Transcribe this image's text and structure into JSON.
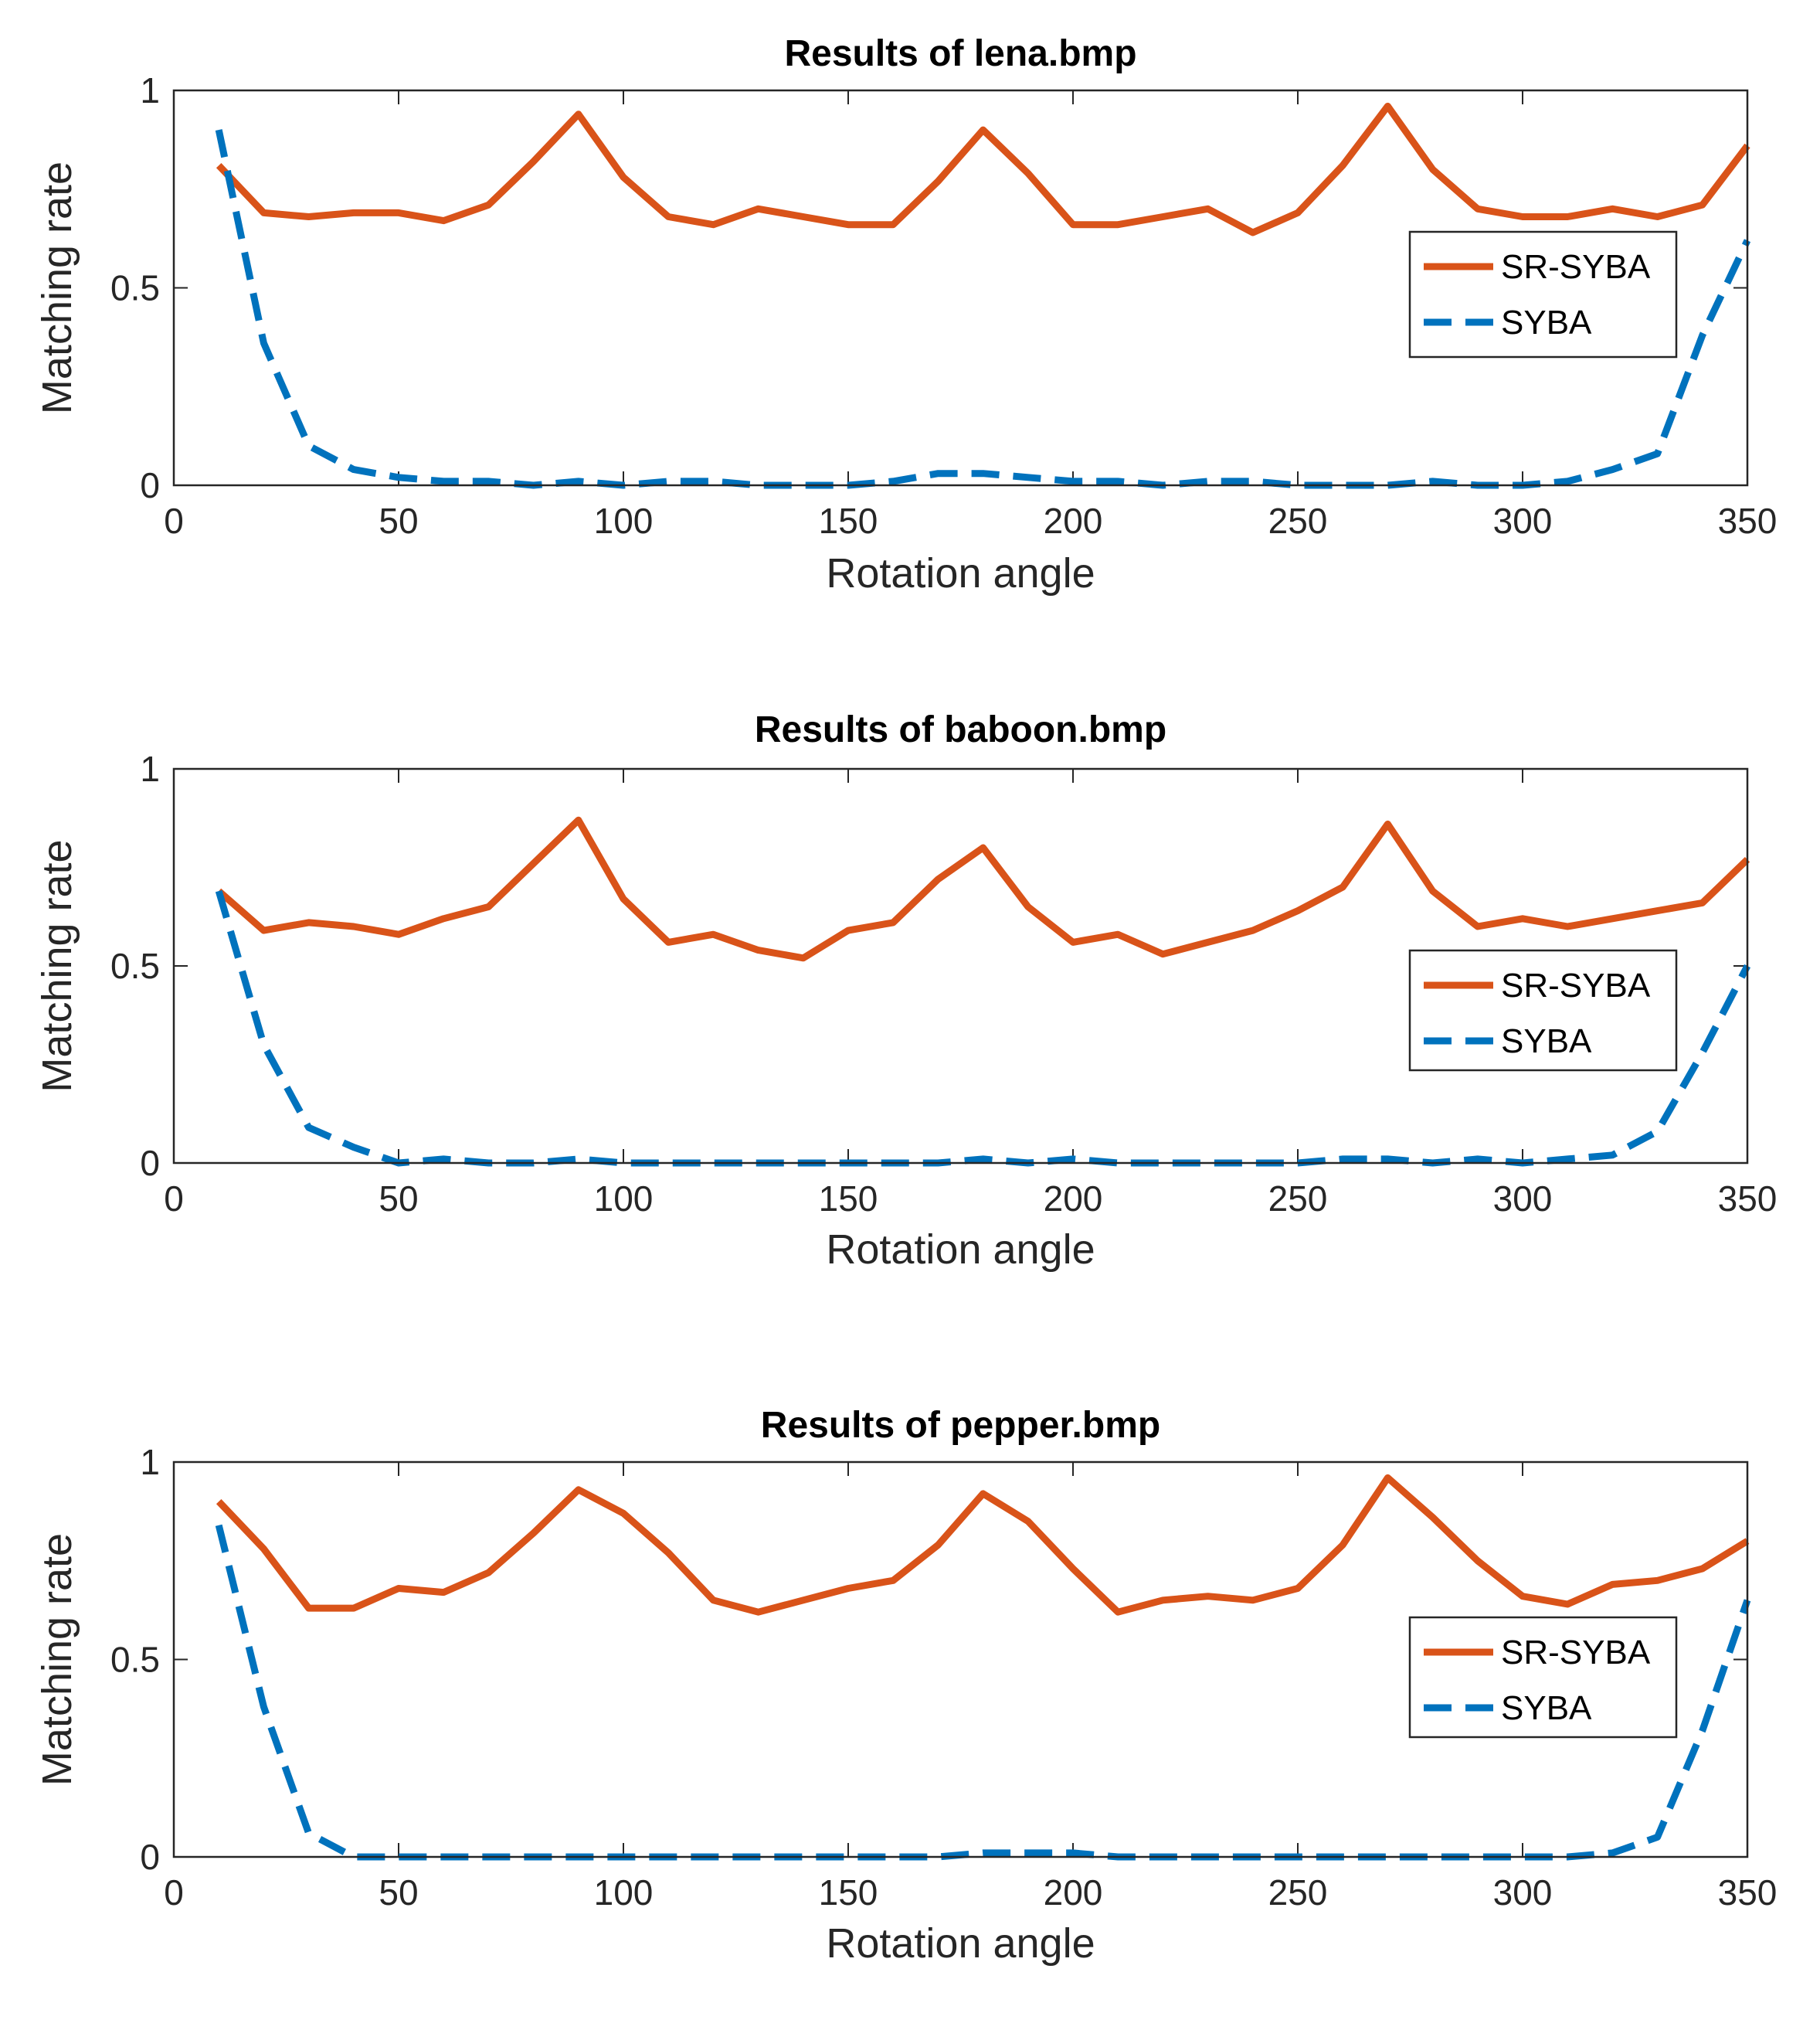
{
  "chart_data": [
    {
      "type": "line",
      "title": "Results of lena.bmp",
      "xlabel": "Rotation angle",
      "ylabel": "Matching rate",
      "xlim": [
        0,
        350
      ],
      "ylim": [
        0,
        1
      ],
      "xticks": [
        "0",
        "50",
        "100",
        "150",
        "200",
        "250",
        "300",
        "350"
      ],
      "xtick_values": [
        0,
        50,
        100,
        150,
        200,
        250,
        300,
        350
      ],
      "yticks": [
        "0",
        "0.5",
        "1"
      ],
      "ytick_values": [
        0,
        0.5,
        1
      ],
      "grid": false,
      "legend_position": "right",
      "x": [
        10,
        20,
        30,
        40,
        50,
        60,
        70,
        80,
        90,
        100,
        110,
        120,
        130,
        140,
        150,
        160,
        170,
        180,
        190,
        200,
        210,
        220,
        230,
        240,
        250,
        260,
        270,
        280,
        290,
        300,
        310,
        320,
        330,
        340,
        350
      ],
      "series": [
        {
          "name": "SR-SYBA",
          "color": "#D95319",
          "style": "solid",
          "values": [
            0.81,
            0.69,
            0.68,
            0.69,
            0.69,
            0.67,
            0.71,
            0.82,
            0.94,
            0.78,
            0.68,
            0.66,
            0.7,
            0.68,
            0.66,
            0.66,
            0.77,
            0.9,
            0.79,
            0.66,
            0.66,
            0.68,
            0.7,
            0.64,
            0.69,
            0.81,
            0.96,
            0.8,
            0.7,
            0.68,
            0.68,
            0.7,
            0.68,
            0.71,
            0.86
          ]
        },
        {
          "name": "SYBA",
          "color": "#0072BD",
          "style": "dashed",
          "values": [
            0.9,
            0.36,
            0.1,
            0.04,
            0.02,
            0.01,
            0.01,
            0.0,
            0.01,
            0.0,
            0.01,
            0.01,
            0.0,
            0.0,
            0.0,
            0.01,
            0.03,
            0.03,
            0.02,
            0.01,
            0.01,
            0.0,
            0.01,
            0.01,
            0.0,
            0.0,
            0.0,
            0.01,
            0.0,
            0.0,
            0.01,
            0.04,
            0.08,
            0.38,
            0.62
          ]
        }
      ]
    },
    {
      "type": "line",
      "title": "Results of baboon.bmp",
      "xlabel": "Rotation angle",
      "ylabel": "Matching rate",
      "xlim": [
        0,
        350
      ],
      "ylim": [
        0,
        1
      ],
      "xticks": [
        "0",
        "50",
        "100",
        "150",
        "200",
        "250",
        "300",
        "350"
      ],
      "xtick_values": [
        0,
        50,
        100,
        150,
        200,
        250,
        300,
        350
      ],
      "yticks": [
        "0",
        "0.5",
        "1"
      ],
      "ytick_values": [
        0,
        0.5,
        1
      ],
      "grid": false,
      "legend_position": "right",
      "x": [
        10,
        20,
        30,
        40,
        50,
        60,
        70,
        80,
        90,
        100,
        110,
        120,
        130,
        140,
        150,
        160,
        170,
        180,
        190,
        200,
        210,
        220,
        230,
        240,
        250,
        260,
        270,
        280,
        290,
        300,
        310,
        320,
        330,
        340,
        350
      ],
      "series": [
        {
          "name": "SR-SYBA",
          "color": "#D95319",
          "style": "solid",
          "values": [
            0.69,
            0.59,
            0.61,
            0.6,
            0.58,
            0.62,
            0.65,
            0.76,
            0.87,
            0.67,
            0.56,
            0.58,
            0.54,
            0.52,
            0.59,
            0.61,
            0.72,
            0.8,
            0.65,
            0.56,
            0.58,
            0.53,
            0.56,
            0.59,
            0.64,
            0.7,
            0.86,
            0.69,
            0.6,
            0.62,
            0.6,
            0.62,
            0.64,
            0.66,
            0.77
          ]
        },
        {
          "name": "SYBA",
          "color": "#0072BD",
          "style": "dashed",
          "values": [
            0.69,
            0.3,
            0.09,
            0.04,
            0.0,
            0.01,
            0.0,
            0.0,
            0.01,
            0.0,
            0.0,
            0.0,
            0.0,
            0.0,
            0.0,
            0.0,
            0.0,
            0.01,
            0.0,
            0.01,
            0.0,
            0.0,
            0.0,
            0.0,
            0.0,
            0.01,
            0.01,
            0.0,
            0.01,
            0.0,
            0.01,
            0.02,
            0.08,
            0.28,
            0.5
          ]
        }
      ]
    },
    {
      "type": "line",
      "title": "Results of pepper.bmp",
      "xlabel": "Rotation angle",
      "ylabel": "Matching rate",
      "xlim": [
        0,
        350
      ],
      "ylim": [
        0,
        1
      ],
      "xticks": [
        "0",
        "50",
        "100",
        "150",
        "200",
        "250",
        "300",
        "350"
      ],
      "xtick_values": [
        0,
        50,
        100,
        150,
        200,
        250,
        300,
        350
      ],
      "yticks": [
        "0",
        "0.5",
        "1"
      ],
      "ytick_values": [
        0,
        0.5,
        1
      ],
      "grid": false,
      "legend_position": "right",
      "x": [
        10,
        20,
        30,
        40,
        50,
        60,
        70,
        80,
        90,
        100,
        110,
        120,
        130,
        140,
        150,
        160,
        170,
        180,
        190,
        200,
        210,
        220,
        230,
        240,
        250,
        260,
        270,
        280,
        290,
        300,
        310,
        320,
        330,
        340,
        350
      ],
      "series": [
        {
          "name": "SR-SYBA",
          "color": "#D95319",
          "style": "solid",
          "values": [
            0.9,
            0.78,
            0.63,
            0.63,
            0.68,
            0.67,
            0.72,
            0.82,
            0.93,
            0.87,
            0.77,
            0.65,
            0.62,
            0.65,
            0.68,
            0.7,
            0.79,
            0.92,
            0.85,
            0.73,
            0.62,
            0.65,
            0.66,
            0.65,
            0.68,
            0.79,
            0.96,
            0.86,
            0.75,
            0.66,
            0.64,
            0.69,
            0.7,
            0.73,
            0.8
          ]
        },
        {
          "name": "SYBA",
          "color": "#0072BD",
          "style": "dashed",
          "values": [
            0.84,
            0.38,
            0.06,
            0.0,
            0.0,
            0.0,
            0.0,
            0.0,
            0.0,
            0.0,
            0.0,
            0.0,
            0.0,
            0.0,
            0.0,
            0.0,
            0.0,
            0.01,
            0.01,
            0.01,
            0.0,
            0.0,
            0.0,
            0.0,
            0.0,
            0.0,
            0.0,
            0.0,
            0.0,
            0.0,
            0.0,
            0.01,
            0.05,
            0.32,
            0.65
          ]
        }
      ]
    }
  ]
}
